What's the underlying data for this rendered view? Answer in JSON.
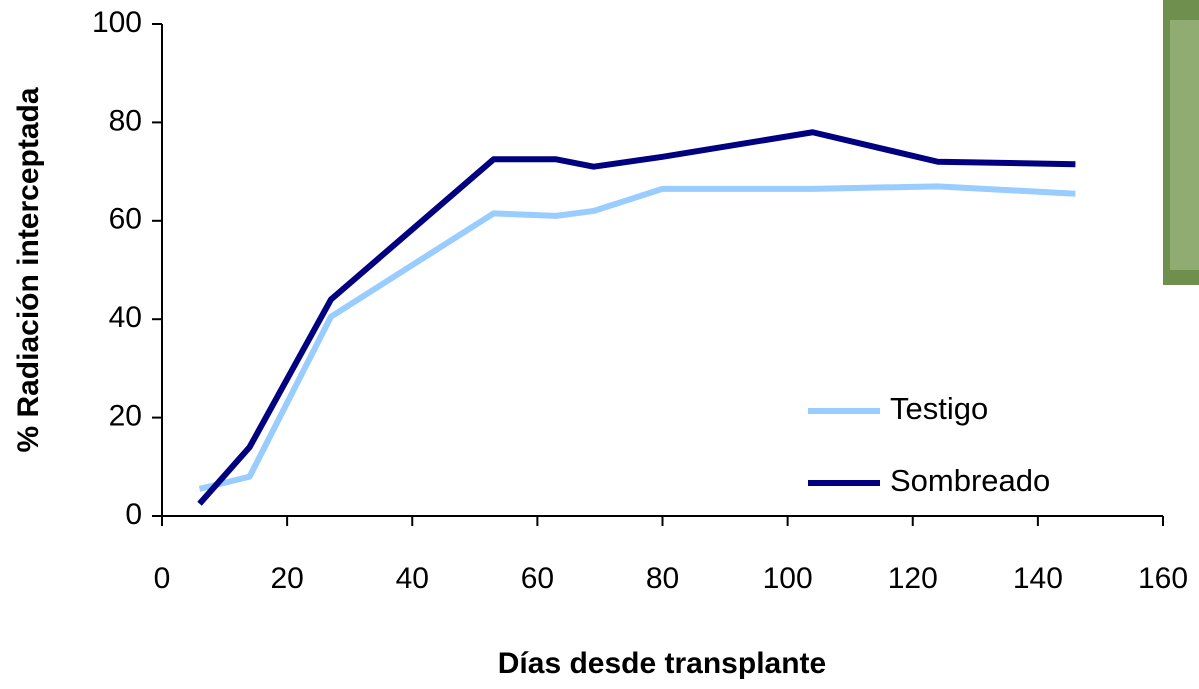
{
  "chart_data": {
    "type": "line",
    "x_label": "Días desde transplante",
    "y_label": "% Radiación interceptada",
    "xlim": [
      0,
      160
    ],
    "xticks": [
      0,
      20,
      40,
      60,
      80,
      100,
      120,
      140,
      160
    ],
    "ylim": [
      0,
      100
    ],
    "yticks": [
      0,
      20,
      40,
      60,
      80,
      100
    ],
    "grid": false,
    "legend_position": "lower right",
    "series": [
      {
        "name": "Testigo",
        "color": "#99ccff",
        "x": [
          6,
          14,
          27,
          53,
          63,
          69,
          80,
          104,
          124,
          146
        ],
        "values": [
          5.5,
          8,
          40.5,
          61.5,
          61,
          62,
          66.5,
          66.5,
          67,
          65.5
        ]
      },
      {
        "name": "Sombreado",
        "color": "#000080",
        "x": [
          6,
          14,
          27,
          53,
          63,
          69,
          80,
          104,
          124,
          146
        ],
        "values": [
          2.5,
          14,
          44,
          72.5,
          72.5,
          71,
          73,
          78,
          72,
          71.5
        ]
      }
    ]
  }
}
